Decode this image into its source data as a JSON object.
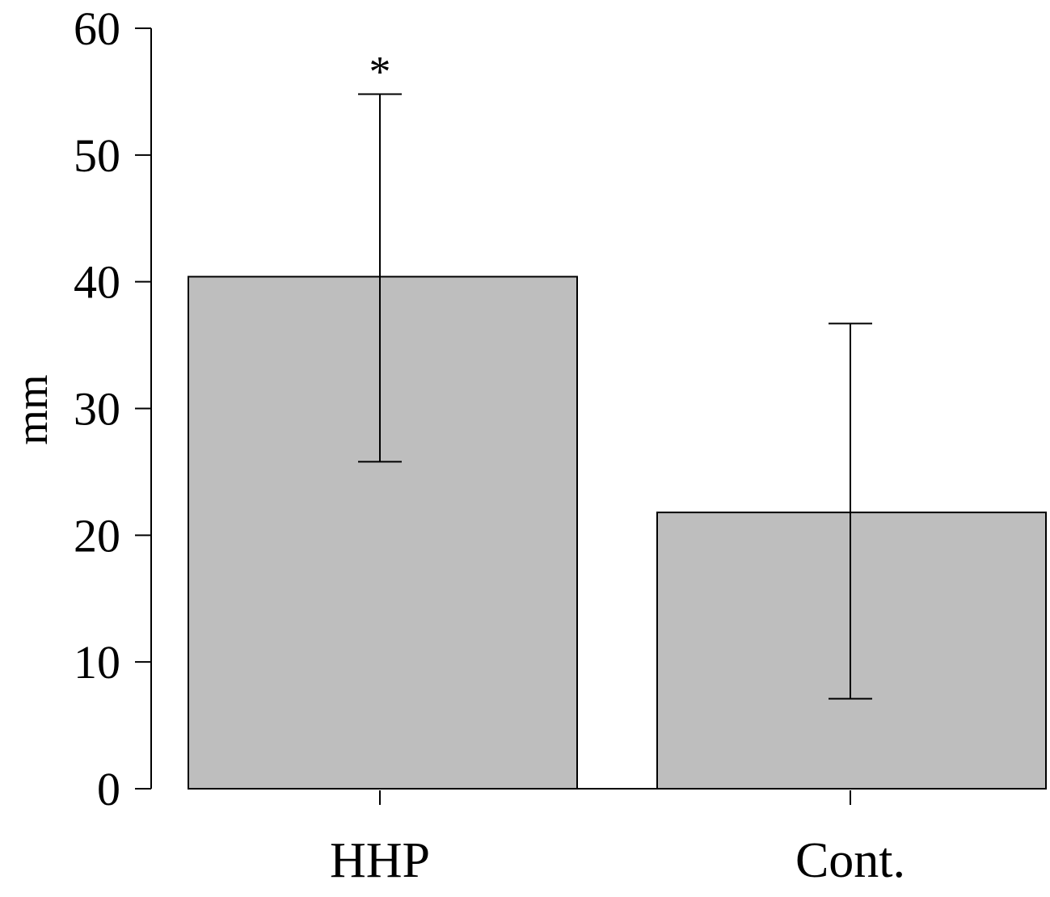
{
  "chart_data": {
    "type": "bar",
    "categories": [
      "HHP",
      "Cont."
    ],
    "values": [
      40.4,
      21.8
    ],
    "error_upper": [
      54.8,
      36.7
    ],
    "error_lower": [
      25.8,
      7.1
    ],
    "annotations": [
      "*",
      ""
    ],
    "title": "",
    "xlabel": "",
    "ylabel": "mm",
    "ylim": [
      0,
      60
    ],
    "yticks": [
      0,
      10,
      20,
      30,
      40,
      50,
      60
    ],
    "grid": false,
    "bar_color": "#bebebe",
    "edge_color": "#000000"
  }
}
